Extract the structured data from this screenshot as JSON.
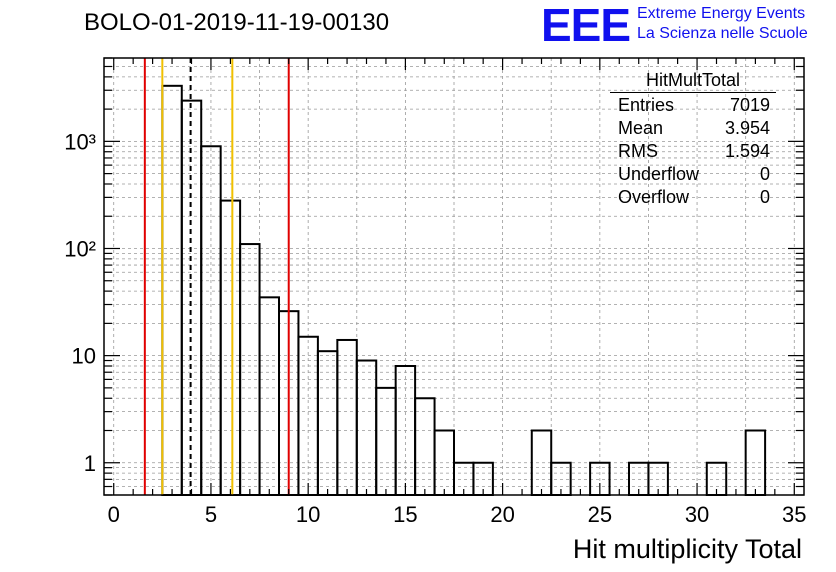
{
  "header": {
    "title": "BOLO-01-2019-11-19-00130"
  },
  "logo": {
    "mark": "EEE",
    "line1": "Extreme Energy Events",
    "line2": "La Scienza nelle Scuole"
  },
  "stats": {
    "name": "HitMultTotal",
    "rows": [
      {
        "label": "Entries",
        "value": "7019"
      },
      {
        "label": "Mean",
        "value": "3.954"
      },
      {
        "label": "RMS",
        "value": "1.594"
      },
      {
        "label": "Underflow",
        "value": "0"
      },
      {
        "label": "Overflow",
        "value": "0"
      }
    ]
  },
  "colors": {
    "frame": "#000000",
    "grid": "#999999",
    "histogram": "#000000",
    "red_line": "#e00000",
    "yellow_line": "#f0c000",
    "logo": "#1010ee"
  },
  "chart_data": {
    "type": "histogram",
    "xlabel": "Hit multiplicity Total",
    "ylabel": "",
    "xlim": [
      -0.5,
      35.5
    ],
    "ylim": [
      0.5,
      6000
    ],
    "yscale": "log",
    "grid": true,
    "legend": "top-right",
    "x_ticks": [
      0,
      5,
      10,
      15,
      20,
      25,
      30,
      35
    ],
    "y_ticks": [
      {
        "value": 1,
        "label": "1"
      },
      {
        "value": 10,
        "label": "10"
      },
      {
        "value": 100,
        "label": "10²"
      },
      {
        "value": 1000,
        "label": "10³"
      }
    ],
    "bin_width": 1,
    "bins": [
      {
        "x": 3,
        "count": 3300
      },
      {
        "x": 4,
        "count": 2400
      },
      {
        "x": 5,
        "count": 900
      },
      {
        "x": 6,
        "count": 280
      },
      {
        "x": 7,
        "count": 110
      },
      {
        "x": 8,
        "count": 35
      },
      {
        "x": 9,
        "count": 26
      },
      {
        "x": 10,
        "count": 15
      },
      {
        "x": 11,
        "count": 11
      },
      {
        "x": 12,
        "count": 14
      },
      {
        "x": 13,
        "count": 9
      },
      {
        "x": 14,
        "count": 5
      },
      {
        "x": 15,
        "count": 8
      },
      {
        "x": 16,
        "count": 4
      },
      {
        "x": 17,
        "count": 2
      },
      {
        "x": 18,
        "count": 1
      },
      {
        "x": 19,
        "count": 1
      },
      {
        "x": 20,
        "count": 0
      },
      {
        "x": 21,
        "count": 0
      },
      {
        "x": 22,
        "count": 2
      },
      {
        "x": 23,
        "count": 1
      },
      {
        "x": 24,
        "count": 0
      },
      {
        "x": 25,
        "count": 1
      },
      {
        "x": 26,
        "count": 0
      },
      {
        "x": 27,
        "count": 1
      },
      {
        "x": 28,
        "count": 1
      },
      {
        "x": 29,
        "count": 0
      },
      {
        "x": 30,
        "count": 0
      },
      {
        "x": 31,
        "count": 1
      },
      {
        "x": 32,
        "count": 0
      },
      {
        "x": 33,
        "count": 2
      }
    ],
    "vertical_lines": [
      {
        "x": 1.6,
        "color": "#e00000",
        "style": "solid"
      },
      {
        "x": 2.5,
        "color": "#f0c000",
        "style": "solid"
      },
      {
        "x": 3.954,
        "color": "#000000",
        "style": "dashed"
      },
      {
        "x": 6.1,
        "color": "#f0c000",
        "style": "solid"
      },
      {
        "x": 9.0,
        "color": "#e00000",
        "style": "solid"
      }
    ]
  }
}
